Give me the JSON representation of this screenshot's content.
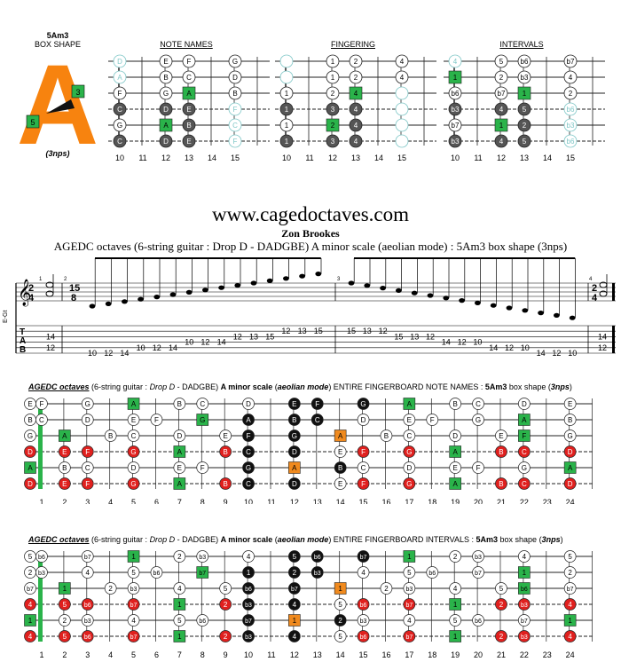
{
  "shape": {
    "name": "5Am3",
    "label": "BOX SHAPE",
    "letter": "A",
    "nps": "(3nps)",
    "marker_left": "5",
    "marker_right": "3",
    "color": "#f7830f"
  },
  "colors": {
    "green": "#2ab34a",
    "red": "#e0201e",
    "orange": "#f08a1e",
    "black": "#111111",
    "dark": "#555555",
    "faded": "#7fc7c7"
  },
  "mini": {
    "headers": [
      "NOTE NAMES",
      "FINGERING",
      "INTERVALS"
    ],
    "frets": [
      "10",
      "11",
      "12",
      "13",
      "14",
      "15"
    ],
    "diagrams": [
      {
        "strings": [
          [
            [
              "D",
              "f"
            ],
            [
              "E",
              "w"
            ],
            [
              "F",
              "w"
            ],
            [
              "G",
              "w"
            ]
          ],
          [
            [
              "A",
              "f"
            ],
            [
              "B",
              "w"
            ],
            [
              "C",
              "w"
            ],
            [
              "D",
              "w"
            ]
          ],
          [
            [
              "F",
              "w"
            ],
            [
              "G",
              "w"
            ],
            [
              "A",
              "g"
            ],
            [
              "B",
              "w"
            ]
          ],
          [
            [
              "C",
              "d"
            ],
            [
              "D",
              "d"
            ],
            [
              "E",
              "d"
            ],
            [
              "F",
              "f"
            ]
          ],
          [
            [
              "G",
              "w"
            ],
            [
              "A",
              "g"
            ],
            [
              "B",
              "d"
            ],
            [
              "C",
              "f"
            ]
          ],
          [
            [
              "C",
              "d"
            ],
            [
              "D",
              "d"
            ],
            [
              "E",
              "d"
            ],
            [
              "F",
              "f"
            ]
          ]
        ],
        "cols": [
          0,
          2,
          3,
          5
        ]
      },
      {
        "strings": [
          [
            [
              "",
              "f"
            ],
            [
              "1",
              "w"
            ],
            [
              "2",
              "w"
            ],
            [
              "4",
              "w"
            ]
          ],
          [
            [
              "",
              "f"
            ],
            [
              "1",
              "w"
            ],
            [
              "2",
              "w"
            ],
            [
              "4",
              "w"
            ]
          ],
          [
            [
              "1",
              "w"
            ],
            [
              "2",
              "w"
            ],
            [
              "4",
              "g"
            ],
            [
              "",
              "f"
            ]
          ],
          [
            [
              "1",
              "d"
            ],
            [
              "3",
              "d"
            ],
            [
              "4",
              "d"
            ],
            [
              "",
              "f"
            ]
          ],
          [
            [
              "1",
              "w"
            ],
            [
              "2",
              "g"
            ],
            [
              "4",
              "d"
            ],
            [
              "",
              "f"
            ]
          ],
          [
            [
              "1",
              "d"
            ],
            [
              "3",
              "d"
            ],
            [
              "4",
              "d"
            ],
            [
              "",
              "f"
            ]
          ]
        ],
        "cols": [
          0,
          2,
          3,
          5
        ]
      },
      {
        "strings": [
          [
            [
              "4",
              "f"
            ],
            [
              "5",
              "w"
            ],
            [
              "b6",
              "w"
            ],
            [
              "b7",
              "w"
            ]
          ],
          [
            [
              "1",
              "g"
            ],
            [
              "2",
              "w"
            ],
            [
              "b3",
              "w"
            ],
            [
              "4",
              "w"
            ]
          ],
          [
            [
              "b6",
              "w"
            ],
            [
              "b7",
              "w"
            ],
            [
              "1",
              "g"
            ],
            [
              "2",
              "w"
            ]
          ],
          [
            [
              "b3",
              "d"
            ],
            [
              "4",
              "d"
            ],
            [
              "5",
              "d"
            ],
            [
              "b6",
              "f"
            ]
          ],
          [
            [
              "b7",
              "w"
            ],
            [
              "1",
              "g"
            ],
            [
              "2",
              "d"
            ],
            [
              "b3",
              "f"
            ]
          ],
          [
            [
              "b3",
              "d"
            ],
            [
              "4",
              "d"
            ],
            [
              "5",
              "d"
            ],
            [
              "b6",
              "f"
            ]
          ]
        ],
        "cols": [
          0,
          2,
          3,
          5
        ]
      }
    ]
  },
  "site": "www.cagedoctaves.com",
  "author": "Zon Brookes",
  "subtitle": "AGEDC octaves (6-string guitar : Drop D - DADGBE) A minor scale (aeolian mode) : 5Am3 box shape (3nps)",
  "notation": {
    "clef_label": "E-Gt",
    "time_left": [
      "2",
      "4"
    ],
    "time_mid": [
      "15",
      "8"
    ],
    "time_right": [
      "2",
      "4"
    ],
    "measures": [
      "1",
      "2",
      "3",
      "4"
    ],
    "tab_letters": [
      "T",
      "A",
      "B"
    ],
    "tab_m1": [
      "14",
      "12"
    ],
    "tab_m4": [
      "14",
      "12"
    ],
    "tab_up": [
      "10",
      "12",
      "14",
      "10",
      "12",
      "14",
      "10",
      "12",
      "14",
      "12",
      "13",
      "15",
      "12",
      "13",
      "15"
    ],
    "tab_down": [
      "15",
      "13",
      "12",
      "15",
      "13",
      "12",
      "14",
      "12",
      "10",
      "14",
      "12",
      "10",
      "14",
      "12",
      "10"
    ]
  },
  "fb1": {
    "title_a": "AGEDC octaves",
    "title_b": " (6-string guitar : ",
    "title_c": "Drop D",
    "title_d": " - DADGBE) ",
    "title_e": "A minor scale",
    "title_f": " (",
    "title_g": "aeolian mode",
    "title_h": ") ENTIRE FINGERBOARD NOTE NAMES : ",
    "title_i": "5Am3",
    "title_j": " box shape (",
    "title_k": "3nps",
    "title_l": ")"
  },
  "fb2": {
    "title_a": "AGEDC octaves",
    "title_b": " (6-string guitar : ",
    "title_c": "Drop D",
    "title_d": " - DADGBE) ",
    "title_e": "A minor scale",
    "title_f": " (",
    "title_g": "aeolian mode",
    "title_h": ") ENTIRE FINGERBOARD INTERVALS : ",
    "title_i": "5Am3",
    "title_j": " box shape (",
    "title_k": "3nps",
    "title_l": ")"
  },
  "fret_numbers": [
    "1",
    "2",
    "3",
    "4",
    "5",
    "6",
    "7",
    "8",
    "9",
    "10",
    "11",
    "12",
    "13",
    "14",
    "15",
    "16",
    "17",
    "18",
    "19",
    "20",
    "21",
    "22",
    "23",
    "24"
  ],
  "fb_notes": {
    "open": [
      "E",
      "B",
      "G",
      "D",
      "A",
      "D"
    ],
    "strings": [
      [
        "F",
        "",
        "G",
        "",
        "A",
        "",
        "B",
        "C",
        "",
        "D",
        "",
        "E",
        "F",
        "",
        "G",
        "",
        "A",
        "",
        "B",
        "C",
        "",
        "D",
        "",
        "E"
      ],
      [
        "C",
        "",
        "D",
        "",
        "E",
        "F",
        "",
        "G",
        "",
        "A",
        "",
        "B",
        "C",
        "",
        "D",
        "",
        "E",
        "F",
        "",
        "G",
        "",
        "A",
        "",
        "B"
      ],
      [
        "",
        "A",
        "",
        "B",
        "C",
        "",
        "D",
        "",
        "E",
        "F",
        "",
        "G",
        "",
        "A",
        "",
        "B",
        "C",
        "",
        "D",
        "",
        "E",
        "F",
        "",
        "G"
      ],
      [
        "",
        "E",
        "F",
        "",
        "G",
        "",
        "A",
        "",
        "B",
        "C",
        "",
        "D",
        "",
        "E",
        "F",
        "",
        "G",
        "",
        "A",
        "",
        "B",
        "C",
        "",
        "D"
      ],
      [
        "",
        "B",
        "C",
        "",
        "D",
        "",
        "E",
        "F",
        "",
        "G",
        "",
        "A",
        "",
        "B",
        "C",
        "",
        "D",
        "",
        "E",
        "F",
        "",
        "G",
        "",
        "A"
      ],
      [
        "",
        "E",
        "F",
        "",
        "G",
        "",
        "A",
        "",
        "B",
        "C",
        "",
        "D",
        "",
        "E",
        "F",
        "",
        "G",
        "",
        "A",
        "",
        "B",
        "C",
        "",
        "D"
      ]
    ],
    "styles": [
      [
        "w",
        "",
        "w",
        "",
        "g",
        "",
        "w",
        "w",
        "",
        "w",
        "",
        "k",
        "k",
        "",
        "k",
        "",
        "g",
        "",
        "w",
        "w",
        "",
        "w",
        "",
        "w"
      ],
      [
        "w",
        "",
        "w",
        "",
        "w",
        "w",
        "",
        "g",
        "",
        "k",
        "",
        "k",
        "k",
        "",
        "w",
        "",
        "w",
        "w",
        "",
        "w",
        "",
        "g",
        "",
        "w"
      ],
      [
        "",
        "g",
        "",
        "w",
        "w",
        "",
        "w",
        "",
        "w",
        "k",
        "",
        "k",
        "",
        "o",
        "",
        "w",
        "w",
        "",
        "w",
        "",
        "w",
        "g",
        "",
        "w"
      ],
      [
        "",
        "r",
        "r",
        "",
        "r",
        "",
        "g",
        "",
        "r",
        "k",
        "",
        "k",
        "",
        "w",
        "r",
        "",
        "r",
        "",
        "g",
        "",
        "r",
        "r",
        "",
        "r"
      ],
      [
        "",
        "w",
        "w",
        "",
        "w",
        "",
        "w",
        "w",
        "",
        "k",
        "",
        "o",
        "",
        "k",
        "w",
        "",
        "w",
        "",
        "w",
        "w",
        "",
        "w",
        "",
        "g"
      ],
      [
        "",
        "r",
        "r",
        "",
        "r",
        "",
        "g",
        "",
        "r",
        "k",
        "",
        "k",
        "",
        "w",
        "r",
        "",
        "r",
        "",
        "g",
        "",
        "r",
        "r",
        "",
        "r"
      ]
    ],
    "open_styles": [
      "w",
      "w",
      "w",
      "r",
      "g",
      "r"
    ]
  },
  "fb_intervals": {
    "open": [
      "5",
      "2",
      "b7",
      "4",
      "1",
      "4"
    ],
    "strings": [
      [
        "b6",
        "",
        "b7",
        "",
        "1",
        "",
        "2",
        "b3",
        "",
        "4",
        "",
        "5",
        "b6",
        "",
        "b7",
        "",
        "1",
        "",
        "2",
        "b3",
        "",
        "4",
        "",
        "5"
      ],
      [
        "b3",
        "",
        "4",
        "",
        "5",
        "b6",
        "",
        "b7",
        "",
        "1",
        "",
        "2",
        "b3",
        "",
        "4",
        "",
        "5",
        "b6",
        "",
        "b7",
        "",
        "1",
        "",
        "2"
      ],
      [
        "",
        "1",
        "",
        "2",
        "b3",
        "",
        "4",
        "",
        "5",
        "b6",
        "",
        "b7",
        "",
        "1",
        "",
        "2",
        "b3",
        "",
        "4",
        "",
        "5",
        "b6",
        "",
        "b7"
      ],
      [
        "",
        "5",
        "b6",
        "",
        "b7",
        "",
        "1",
        "",
        "2",
        "b3",
        "",
        "4",
        "",
        "5",
        "b6",
        "",
        "b7",
        "",
        "1",
        "",
        "2",
        "b3",
        "",
        "4"
      ],
      [
        "",
        "2",
        "b3",
        "",
        "4",
        "",
        "5",
        "b6",
        "",
        "b7",
        "",
        "1",
        "",
        "2",
        "b3",
        "",
        "4",
        "",
        "5",
        "b6",
        "",
        "b7",
        "",
        "1"
      ],
      [
        "",
        "5",
        "b6",
        "",
        "b7",
        "",
        "1",
        "",
        "2",
        "b3",
        "",
        "4",
        "",
        "5",
        "b6",
        "",
        "b7",
        "",
        "1",
        "",
        "2",
        "b3",
        "",
        "4"
      ]
    ]
  }
}
